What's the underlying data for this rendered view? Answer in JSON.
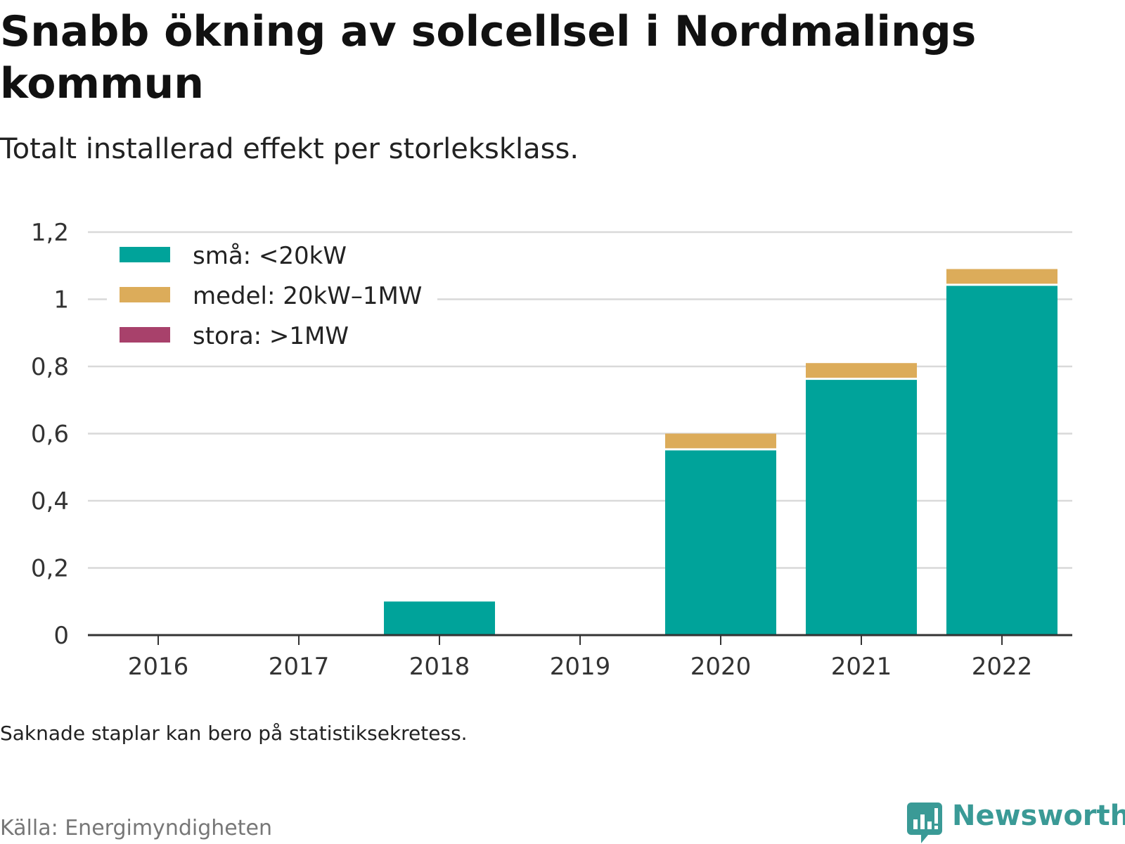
{
  "header": {
    "title": "Snabb ökning av solcellsel i Nordmalings kommun",
    "subtitle": "Totalt installerad effekt per storleksklass."
  },
  "footer": {
    "note": "Saknade staplar kan bero på statistiksekretess.",
    "source": "Källa: Energimyndigheten",
    "brand": "Newsworthy"
  },
  "colors": {
    "sma": "#00a39a",
    "medel": "#dcac5a",
    "stora": "#a8416b",
    "grid": "#d9d9d9",
    "axis": "#333333",
    "brand": "#3a9a96"
  },
  "chart_data": {
    "type": "bar",
    "stacked": true,
    "title": "Snabb ökning av solcellsel i Nordmalings kommun",
    "subtitle": "Totalt installerad effekt per storleksklass.",
    "categories": [
      "2016",
      "2017",
      "2018",
      "2019",
      "2020",
      "2021",
      "2022"
    ],
    "series": [
      {
        "name": "små: <20kW",
        "color": "#00a39a",
        "values": [
          0,
          0,
          0.1,
          0,
          0.55,
          0.76,
          1.04
        ]
      },
      {
        "name": "medel: 20kW–1MW",
        "color": "#dcac5a",
        "values": [
          0,
          0,
          0,
          0,
          0.05,
          0.05,
          0.05
        ]
      },
      {
        "name": "stora: >1MW",
        "color": "#a8416b",
        "values": [
          0,
          0,
          0,
          0,
          0,
          0,
          0
        ]
      }
    ],
    "ylim": [
      0,
      1.2
    ],
    "yticks": [
      0,
      0.2,
      0.4,
      0.6,
      0.8,
      1,
      1.2
    ],
    "ytick_labels": [
      "0",
      "0,2",
      "0,4",
      "0,6",
      "0,8",
      "1",
      "1,2"
    ],
    "grid": true,
    "legend": "top-left"
  }
}
